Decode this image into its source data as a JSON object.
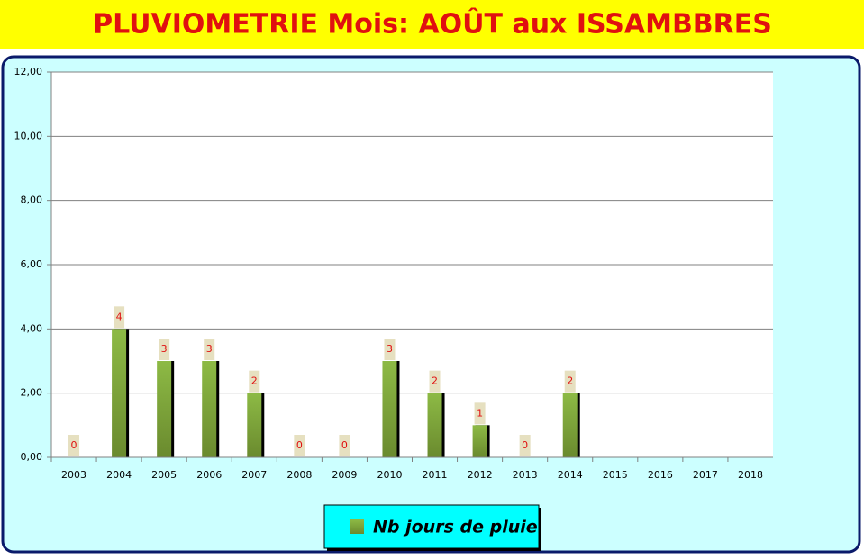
{
  "chart_data": {
    "type": "bar",
    "title": "PLUVIOMETRIE Mois: AOÛT aux ISSAMBBRES",
    "categories": [
      "2003",
      "2004",
      "2005",
      "2006",
      "2007",
      "2008",
      "2009",
      "2010",
      "2011",
      "2012",
      "2013",
      "2014",
      "2015",
      "2016",
      "2017",
      "2018"
    ],
    "series": [
      {
        "name": "Nb jours de pluie",
        "color": "#8dba45",
        "values": [
          0,
          4,
          3,
          3,
          2,
          0,
          0,
          3,
          2,
          1,
          0,
          2,
          null,
          null,
          null,
          null
        ]
      }
    ],
    "ylim": [
      0,
      12
    ],
    "yticks": [
      {
        "value": 0,
        "label": "0,00"
      },
      {
        "value": 2,
        "label": "2,00"
      },
      {
        "value": 4,
        "label": "4,00"
      },
      {
        "value": 6,
        "label": "6,00"
      },
      {
        "value": 8,
        "label": "8,00"
      },
      {
        "value": 10,
        "label": "10,00"
      },
      {
        "value": 12,
        "label": "12,00"
      }
    ],
    "grid": true
  }
}
